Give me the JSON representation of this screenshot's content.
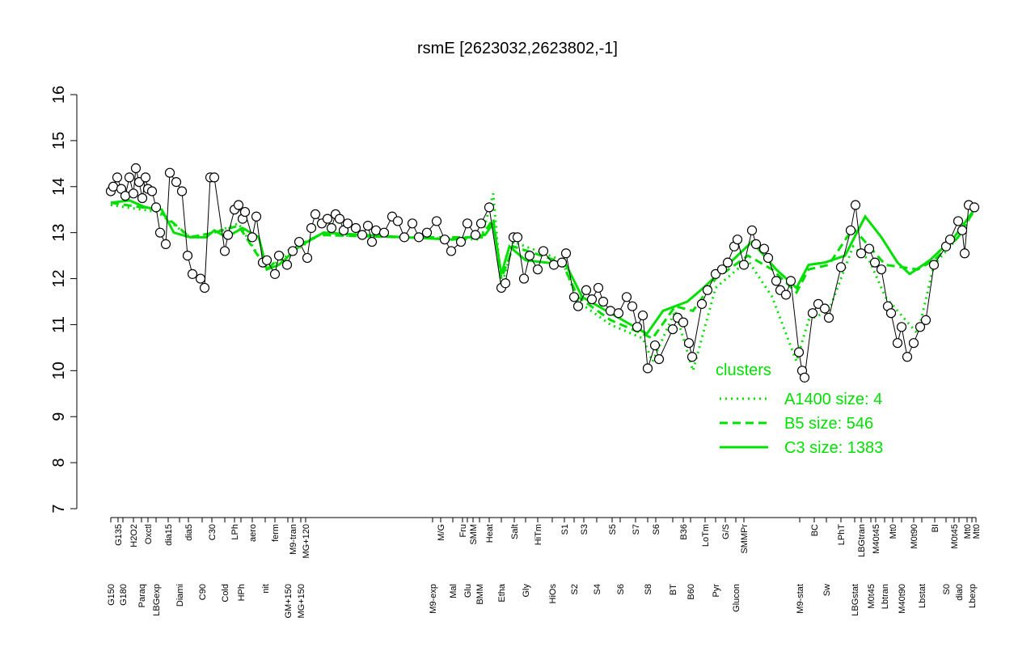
{
  "chart_data": {
    "type": "scatter",
    "title": "rsmE [2623032,2623802,-1]",
    "xlim": [
      0,
      1120
    ],
    "ylim": [
      7,
      16
    ],
    "yticks": [
      7,
      8,
      9,
      10,
      11,
      12,
      13,
      14,
      15,
      16
    ],
    "point_color": "#000000",
    "xticks": [
      {
        "value": 42,
        "label": "G150"
      },
      {
        "value": 51,
        "label": "G135"
      },
      {
        "value": 57,
        "label": "G180"
      },
      {
        "value": 70,
        "label": "H2O2"
      },
      {
        "value": 80,
        "label": "Paraq"
      },
      {
        "value": 88,
        "label": "Oxctl"
      },
      {
        "value": 98,
        "label": "LBGexp"
      },
      {
        "value": 113,
        "label": "dia15"
      },
      {
        "value": 127,
        "label": "Diami"
      },
      {
        "value": 138,
        "label": "dia5"
      },
      {
        "value": 155,
        "label": "C90"
      },
      {
        "value": 167,
        "label": "C30"
      },
      {
        "value": 183,
        "label": "Cold"
      },
      {
        "value": 195,
        "label": "LPh"
      },
      {
        "value": 203,
        "label": "HPh"
      },
      {
        "value": 217,
        "label": "aero"
      },
      {
        "value": 233,
        "label": "nit"
      },
      {
        "value": 245,
        "label": "ferm"
      },
      {
        "value": 261,
        "label": "GM+150"
      },
      {
        "value": 267,
        "label": "M9-tran"
      },
      {
        "value": 277,
        "label": "MG+150"
      },
      {
        "value": 283,
        "label": "MG+120"
      },
      {
        "value": 440,
        "label": "M9-exp"
      },
      {
        "value": 450,
        "label": "M/G"
      },
      {
        "value": 465,
        "label": "Mal"
      },
      {
        "value": 477,
        "label": "Fru"
      },
      {
        "value": 483,
        "label": "Glu"
      },
      {
        "value": 490,
        "label": "SMM"
      },
      {
        "value": 498,
        "label": "BMM"
      },
      {
        "value": 510,
        "label": "Heat"
      },
      {
        "value": 525,
        "label": "Etha"
      },
      {
        "value": 541,
        "label": "Salt"
      },
      {
        "value": 555,
        "label": "Gly"
      },
      {
        "value": 570,
        "label": "HiTm"
      },
      {
        "value": 588,
        "label": "HiOs"
      },
      {
        "value": 603,
        "label": "S1"
      },
      {
        "value": 615,
        "label": "S2"
      },
      {
        "value": 627,
        "label": "S3"
      },
      {
        "value": 643,
        "label": "S4"
      },
      {
        "value": 662,
        "label": "S5"
      },
      {
        "value": 672,
        "label": "S6"
      },
      {
        "value": 691,
        "label": "S7"
      },
      {
        "value": 706,
        "label": "S8"
      },
      {
        "value": 716,
        "label": "S6"
      },
      {
        "value": 737,
        "label": "BT"
      },
      {
        "value": 750,
        "label": "B36"
      },
      {
        "value": 759,
        "label": "B60"
      },
      {
        "value": 777,
        "label": "LoTm"
      },
      {
        "value": 790,
        "label": "Pyr"
      },
      {
        "value": 802,
        "label": "G/S"
      },
      {
        "value": 815,
        "label": "Glucon"
      },
      {
        "value": 825,
        "label": "SMMPr"
      },
      {
        "value": 894,
        "label": "M9-stat"
      },
      {
        "value": 912,
        "label": "BC"
      },
      {
        "value": 927,
        "label": "Sw"
      },
      {
        "value": 945,
        "label": "LPhT"
      },
      {
        "value": 962,
        "label": "LBGstat"
      },
      {
        "value": 970,
        "label": "LBGtran"
      },
      {
        "value": 982,
        "label": "M0t45"
      },
      {
        "value": 988,
        "label": "M40t45"
      },
      {
        "value": 999,
        "label": "Lbtran"
      },
      {
        "value": 1009,
        "label": "Mt0"
      },
      {
        "value": 1020,
        "label": "M40t90"
      },
      {
        "value": 1035,
        "label": "M0t90"
      },
      {
        "value": 1045,
        "label": "Lbstat"
      },
      {
        "value": 1061,
        "label": "BI"
      },
      {
        "value": 1075,
        "label": "S0"
      },
      {
        "value": 1085,
        "label": "M0t45"
      },
      {
        "value": 1091,
        "label": "dia0"
      },
      {
        "value": 1101,
        "label": "Mt0"
      },
      {
        "value": 1107,
        "label": "Lbexp"
      },
      {
        "value": 1112,
        "label": "Mt0"
      }
    ],
    "x": [
      42,
      45,
      50,
      55,
      60,
      65,
      70,
      73,
      77,
      81,
      85,
      88,
      93,
      98,
      103,
      110,
      115,
      123,
      130,
      137,
      143,
      153,
      158,
      165,
      170,
      183,
      187,
      195,
      200,
      205,
      208,
      217,
      222,
      230,
      235,
      245,
      250,
      260,
      267,
      275,
      285,
      290,
      295,
      303,
      310,
      315,
      320,
      325,
      330,
      335,
      345,
      353,
      360,
      365,
      370,
      380,
      390,
      397,
      405,
      415,
      423,
      433,
      445,
      455,
      463,
      475,
      483,
      493,
      500,
      510,
      525,
      530,
      540,
      545,
      553,
      560,
      570,
      577,
      590,
      600,
      605,
      615,
      620,
      630,
      637,
      645,
      651,
      660,
      670,
      680,
      687,
      693,
      700,
      706,
      715,
      720,
      737,
      743,
      750,
      757,
      761,
      773,
      780,
      790,
      798,
      805,
      813,
      817,
      825,
      835,
      840,
      850,
      855,
      865,
      870,
      877,
      883,
      893,
      897,
      900,
      910,
      917,
      925,
      930,
      945,
      957,
      963,
      970,
      980,
      987,
      995,
      1003,
      1007,
      1015,
      1020,
      1027,
      1035,
      1043,
      1050,
      1060,
      1075,
      1080,
      1090,
      1095,
      1098,
      1103,
      1110
    ],
    "values": [
      13.9,
      14.0,
      14.2,
      13.95,
      13.8,
      14.2,
      13.85,
      14.4,
      14.1,
      13.75,
      14.2,
      13.95,
      13.9,
      13.55,
      13.0,
      12.75,
      14.3,
      14.1,
      13.9,
      12.5,
      12.1,
      12.0,
      11.8,
      14.2,
      14.2,
      12.6,
      12.95,
      13.5,
      13.6,
      13.3,
      13.45,
      12.9,
      13.35,
      12.35,
      12.4,
      12.1,
      12.5,
      12.3,
      12.6,
      12.8,
      12.45,
      13.1,
      13.4,
      13.2,
      13.3,
      13.1,
      13.4,
      13.3,
      13.05,
      13.2,
      13.1,
      12.95,
      13.15,
      12.8,
      13.05,
      13.0,
      13.35,
      13.25,
      12.9,
      13.2,
      12.9,
      13.0,
      13.25,
      12.85,
      12.6,
      12.8,
      13.2,
      12.95,
      13.2,
      13.55,
      11.8,
      11.9,
      12.9,
      12.9,
      12.0,
      12.5,
      12.2,
      12.6,
      12.3,
      12.35,
      12.55,
      11.6,
      11.4,
      11.75,
      11.55,
      11.8,
      11.5,
      11.3,
      11.25,
      11.6,
      11.4,
      10.95,
      11.2,
      10.05,
      10.55,
      10.25,
      10.9,
      11.15,
      11.05,
      10.6,
      10.3,
      11.45,
      11.75,
      12.1,
      12.2,
      12.35,
      12.7,
      12.85,
      12.3,
      13.05,
      12.75,
      12.65,
      12.45,
      11.95,
      11.75,
      11.65,
      11.95,
      10.4,
      10.0,
      9.85,
      11.25,
      11.45,
      11.35,
      11.15,
      12.25,
      13.05,
      13.6,
      12.55,
      12.65,
      12.35,
      12.2,
      11.4,
      11.25,
      10.6,
      10.95,
      10.3,
      10.6,
      10.95,
      11.1,
      12.3,
      12.7,
      12.85,
      13.25,
      13.05,
      12.55,
      13.6,
      13.55
    ],
    "legend_title": "clusters",
    "legend": "bottomright",
    "clusters": [
      {
        "name": "A1400 size: 4",
        "color": "#00e000",
        "style": "dotted",
        "x": [
          42,
          100,
          140,
          170,
          200,
          235,
          260,
          300,
          400,
          500,
          515,
          525,
          540,
          600,
          620,
          660,
          700,
          712,
          740,
          762,
          790,
          830,
          860,
          890,
          905,
          930,
          960,
          980,
          1000,
          1040,
          1060,
          1090,
          1112
        ],
        "values": [
          13.6,
          13.45,
          12.9,
          13.0,
          13.2,
          12.2,
          12.5,
          12.95,
          12.9,
          12.85,
          13.85,
          11.8,
          12.8,
          12.4,
          11.5,
          11.0,
          10.7,
          10.2,
          11.3,
          10.0,
          11.8,
          12.4,
          11.6,
          10.2,
          11.1,
          11.3,
          12.7,
          12.4,
          11.6,
          10.8,
          12.3,
          12.9,
          13.55
        ]
      },
      {
        "name": "B5 size: 546",
        "color": "#00e000",
        "style": "dashed",
        "x": [
          42,
          100,
          140,
          170,
          200,
          235,
          260,
          300,
          400,
          500,
          515,
          525,
          540,
          600,
          620,
          660,
          700,
          712,
          740,
          762,
          790,
          830,
          860,
          890,
          905,
          930,
          960,
          980,
          1000,
          1040,
          1060,
          1090,
          1112
        ],
        "values": [
          13.65,
          13.5,
          12.9,
          13.0,
          13.15,
          12.2,
          12.6,
          12.95,
          12.9,
          12.9,
          13.3,
          12.0,
          12.7,
          12.35,
          11.6,
          11.1,
          10.8,
          10.7,
          11.4,
          11.3,
          12.0,
          12.5,
          12.2,
          11.7,
          12.2,
          12.3,
          13.1,
          12.7,
          12.3,
          12.2,
          12.4,
          12.9,
          13.55
        ]
      },
      {
        "name": "C3 size: 1383",
        "color": "#00e000",
        "style": "solid",
        "x": [
          42,
          65,
          85,
          105,
          120,
          140,
          160,
          170,
          185,
          205,
          225,
          235,
          250,
          275,
          305,
          355,
          405,
          465,
          505,
          515,
          525,
          535,
          555,
          605,
          625,
          665,
          705,
          725,
          755,
          775,
          805,
          835,
          865,
          890,
          905,
          925,
          950,
          975,
          995,
          1015,
          1030,
          1055,
          1085,
          1112
        ],
        "values": [
          13.65,
          13.7,
          13.55,
          13.5,
          13.0,
          12.9,
          12.9,
          13.05,
          12.9,
          13.1,
          12.9,
          12.2,
          12.3,
          12.7,
          13.0,
          12.95,
          12.9,
          12.85,
          12.95,
          13.2,
          12.1,
          12.7,
          12.4,
          12.3,
          11.6,
          11.2,
          10.8,
          11.3,
          11.5,
          11.8,
          12.3,
          12.8,
          12.2,
          11.8,
          12.3,
          12.35,
          12.5,
          13.35,
          12.9,
          12.35,
          12.1,
          12.4,
          12.9,
          13.55
        ]
      }
    ]
  }
}
